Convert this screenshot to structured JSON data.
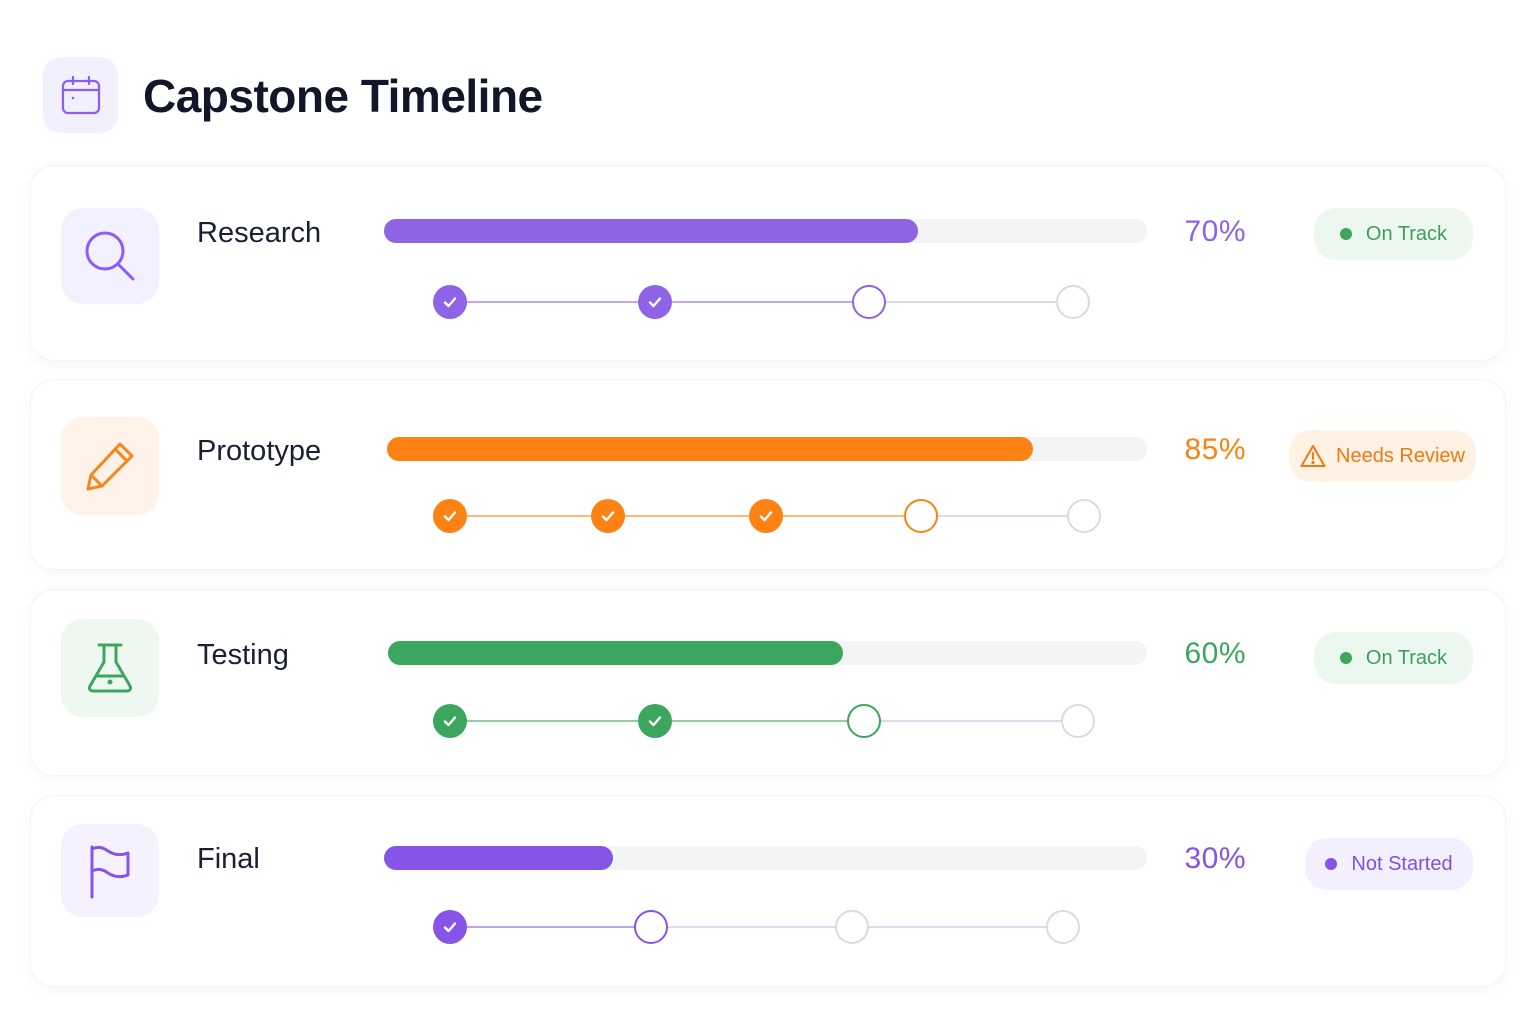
{
  "header": {
    "title": "Capstone Timeline",
    "icon": "calendar-icon"
  },
  "stages": [
    {
      "label": "Research",
      "icon": "search-icon",
      "progress_label": "70%",
      "progress": 70,
      "color": "#8e63e6",
      "status": "On Track",
      "status_icon": "green-dot",
      "milestones": [
        "done",
        "done",
        "current",
        "pending"
      ]
    },
    {
      "label": "Prototype",
      "icon": "pencil-icon",
      "progress_label": "85%",
      "progress": 85,
      "color": "#fb8213",
      "status": "Needs Review",
      "status_icon": "warning-triangle-icon",
      "milestones": [
        "done",
        "done",
        "done",
        "current",
        "pending"
      ]
    },
    {
      "label": "Testing",
      "icon": "flask-icon",
      "progress_label": "60%",
      "progress": 60,
      "color": "#3da65e",
      "status": "On Track",
      "status_icon": "green-dot",
      "milestones": [
        "done",
        "done",
        "current",
        "pending"
      ]
    },
    {
      "label": "Final",
      "icon": "flag-icon",
      "progress_label": "30%",
      "progress": 30,
      "color": "#8655e8",
      "status": "Not Started",
      "status_icon": "purple-dot",
      "milestones": [
        "done",
        "current",
        "pending",
        "pending"
      ]
    }
  ],
  "colors": {
    "purple": "#8e63e6",
    "orange": "#fb8213",
    "green": "#3da65e",
    "on_track_badge_bg": "#ecf7ef",
    "on_track_text": "#3e9e5a",
    "review_badge_bg": "#fff1e4",
    "review_text": "#f07a12",
    "not_started_badge_bg": "#f3efff",
    "not_started_text": "#7d52dc"
  }
}
